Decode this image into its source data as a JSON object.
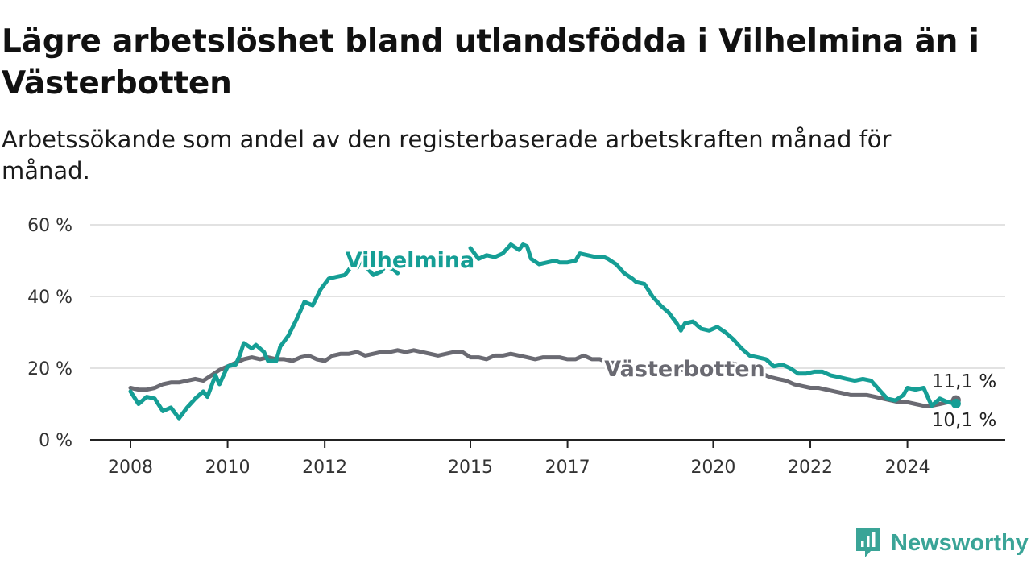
{
  "header": {
    "title": "Lägre arbetslöshet bland utlandsfödda i Vilhelmina än i Västerbotten",
    "subtitle": "Arbetssökande som andel av den registerbaserade arbetskraften månad för månad."
  },
  "brand": {
    "name": "Newsworthy",
    "icon": "newsworthy-logo-icon",
    "color": "#3aa497"
  },
  "chart_data": {
    "type": "line",
    "xlim": [
      "2008-01",
      "2025-06"
    ],
    "ylim": [
      0,
      60
    ],
    "yticks": [
      {
        "value": 0,
        "label": "0 %"
      },
      {
        "value": 20,
        "label": "20 %"
      },
      {
        "value": 40,
        "label": "40 %"
      },
      {
        "value": 60,
        "label": "60 %"
      }
    ],
    "xticks": [
      {
        "value": "2008-01",
        "label": "2008"
      },
      {
        "value": "2010-01",
        "label": "2010"
      },
      {
        "value": "2012-01",
        "label": "2012"
      },
      {
        "value": "2015-01",
        "label": "2015"
      },
      {
        "value": "2017-01",
        "label": "2017"
      },
      {
        "value": "2020-01",
        "label": "2020"
      },
      {
        "value": "2022-01",
        "label": "2022"
      },
      {
        "value": "2024-01",
        "label": "2024"
      }
    ],
    "grid": true,
    "series": [
      {
        "name": "Vilhelmina",
        "color": "#159e95",
        "end_label": "10,1 %",
        "points": [
          [
            "2008-01",
            13.5
          ],
          [
            "2008-03",
            10.0
          ],
          [
            "2008-05",
            12.0
          ],
          [
            "2008-07",
            11.5
          ],
          [
            "2008-09",
            8.0
          ],
          [
            "2008-11",
            9.0
          ],
          [
            "2009-01",
            6.0
          ],
          [
            "2009-03",
            9.0
          ],
          [
            "2009-05",
            11.5
          ],
          [
            "2009-07",
            13.5
          ],
          [
            "2009-08",
            12.0
          ],
          [
            "2009-10",
            18.0
          ],
          [
            "2009-11",
            15.5
          ],
          [
            "2010-01",
            20.5
          ],
          [
            "2010-03",
            21.0
          ],
          [
            "2010-04",
            23.5
          ],
          [
            "2010-05",
            27.0
          ],
          [
            "2010-07",
            25.5
          ],
          [
            "2010-08",
            26.5
          ],
          [
            "2010-10",
            24.5
          ],
          [
            "2010-11",
            22.0
          ],
          [
            "2011-01",
            22.0
          ],
          [
            "2011-02",
            26.0
          ],
          [
            "2011-04",
            29.0
          ],
          [
            "2011-06",
            33.5
          ],
          [
            "2011-08",
            38.5
          ],
          [
            "2011-09",
            38.0
          ],
          [
            "2011-10",
            37.5
          ],
          [
            "2011-12",
            42.0
          ],
          [
            "2012-02",
            45.0
          ],
          [
            "2012-04",
            45.5
          ],
          [
            "2012-06",
            46.0
          ],
          [
            "2012-08",
            49.0
          ],
          [
            "2012-09",
            48.0
          ],
          [
            "2012-10",
            50.5
          ],
          [
            "2012-11",
            48.5
          ],
          [
            "2013-01",
            46.0
          ],
          [
            "2013-03",
            47.0
          ],
          [
            "2013-04",
            48.5
          ],
          [
            "2013-06",
            47.5
          ],
          [
            "2013-07",
            46.5
          ],
          [
            "2015-01",
            53.5
          ],
          [
            "2015-03",
            50.5
          ],
          [
            "2015-05",
            51.5
          ],
          [
            "2015-07",
            51.0
          ],
          [
            "2015-09",
            52.0
          ],
          [
            "2015-11",
            54.5
          ],
          [
            "2016-01",
            53.0
          ],
          [
            "2016-02",
            54.5
          ],
          [
            "2016-03",
            54.0
          ],
          [
            "2016-04",
            50.5
          ],
          [
            "2016-06",
            49.0
          ],
          [
            "2016-08",
            49.5
          ],
          [
            "2016-10",
            50.0
          ],
          [
            "2016-11",
            49.5
          ],
          [
            "2017-01",
            49.5
          ],
          [
            "2017-03",
            50.0
          ],
          [
            "2017-04",
            52.0
          ],
          [
            "2017-06",
            51.5
          ],
          [
            "2017-08",
            51.0
          ],
          [
            "2017-10",
            51.0
          ],
          [
            "2017-11",
            50.5
          ],
          [
            "2018-01",
            49.0
          ],
          [
            "2018-03",
            46.5
          ],
          [
            "2018-05",
            45.0
          ],
          [
            "2018-06",
            44.0
          ],
          [
            "2018-08",
            43.5
          ],
          [
            "2018-10",
            40.0
          ],
          [
            "2018-12",
            37.5
          ],
          [
            "2019-02",
            35.5
          ],
          [
            "2019-04",
            32.5
          ],
          [
            "2019-05",
            30.5
          ],
          [
            "2019-06",
            32.5
          ],
          [
            "2019-08",
            33.0
          ],
          [
            "2019-10",
            31.0
          ],
          [
            "2019-12",
            30.5
          ],
          [
            "2020-02",
            31.5
          ],
          [
            "2020-04",
            30.0
          ],
          [
            "2020-06",
            28.0
          ],
          [
            "2020-08",
            25.5
          ],
          [
            "2020-10",
            23.5
          ],
          [
            "2020-12",
            23.0
          ],
          [
            "2021-02",
            22.5
          ],
          [
            "2021-04",
            20.5
          ],
          [
            "2021-06",
            21.0
          ],
          [
            "2021-08",
            20.0
          ],
          [
            "2021-10",
            18.5
          ],
          [
            "2021-12",
            18.5
          ],
          [
            "2022-02",
            19.0
          ],
          [
            "2022-04",
            19.0
          ],
          [
            "2022-06",
            18.0
          ],
          [
            "2022-08",
            17.5
          ],
          [
            "2022-10",
            17.0
          ],
          [
            "2022-12",
            16.5
          ],
          [
            "2023-02",
            17.0
          ],
          [
            "2023-04",
            16.5
          ],
          [
            "2023-06",
            14.0
          ],
          [
            "2023-08",
            11.5
          ],
          [
            "2023-10",
            11.0
          ],
          [
            "2023-12",
            12.5
          ],
          [
            "2024-01",
            14.5
          ],
          [
            "2024-03",
            14.0
          ],
          [
            "2024-05",
            14.5
          ],
          [
            "2024-07",
            9.5
          ],
          [
            "2024-09",
            11.5
          ],
          [
            "2024-11",
            10.5
          ],
          [
            "2025-01",
            10.1
          ]
        ],
        "gap_after": [
          "2013-07"
        ]
      },
      {
        "name": "Västerbotten",
        "color": "#6a6a72",
        "end_label": "11,1 %",
        "points": [
          [
            "2008-01",
            14.5
          ],
          [
            "2008-03",
            14.0
          ],
          [
            "2008-05",
            14.0
          ],
          [
            "2008-07",
            14.5
          ],
          [
            "2008-09",
            15.5
          ],
          [
            "2008-11",
            16.0
          ],
          [
            "2009-01",
            16.0
          ],
          [
            "2009-03",
            16.5
          ],
          [
            "2009-05",
            17.0
          ],
          [
            "2009-07",
            16.5
          ],
          [
            "2009-09",
            18.0
          ],
          [
            "2009-11",
            19.5
          ],
          [
            "2010-01",
            20.5
          ],
          [
            "2010-03",
            21.5
          ],
          [
            "2010-05",
            22.5
          ],
          [
            "2010-07",
            23.0
          ],
          [
            "2010-09",
            22.5
          ],
          [
            "2010-11",
            23.0
          ],
          [
            "2011-01",
            22.5
          ],
          [
            "2011-03",
            22.5
          ],
          [
            "2011-05",
            22.0
          ],
          [
            "2011-07",
            23.0
          ],
          [
            "2011-09",
            23.5
          ],
          [
            "2011-11",
            22.5
          ],
          [
            "2012-01",
            22.0
          ],
          [
            "2012-03",
            23.5
          ],
          [
            "2012-05",
            24.0
          ],
          [
            "2012-07",
            24.0
          ],
          [
            "2012-09",
            24.5
          ],
          [
            "2012-11",
            23.5
          ],
          [
            "2013-01",
            24.0
          ],
          [
            "2013-03",
            24.5
          ],
          [
            "2013-05",
            24.5
          ],
          [
            "2013-07",
            25.0
          ],
          [
            "2013-09",
            24.5
          ],
          [
            "2013-11",
            25.0
          ],
          [
            "2014-01",
            24.5
          ],
          [
            "2014-03",
            24.0
          ],
          [
            "2014-05",
            23.5
          ],
          [
            "2014-07",
            24.0
          ],
          [
            "2014-09",
            24.5
          ],
          [
            "2014-11",
            24.5
          ],
          [
            "2015-01",
            23.0
          ],
          [
            "2015-03",
            23.0
          ],
          [
            "2015-05",
            22.5
          ],
          [
            "2015-07",
            23.5
          ],
          [
            "2015-09",
            23.5
          ],
          [
            "2015-11",
            24.0
          ],
          [
            "2016-01",
            23.5
          ],
          [
            "2016-03",
            23.0
          ],
          [
            "2016-05",
            22.5
          ],
          [
            "2016-07",
            23.0
          ],
          [
            "2016-09",
            23.0
          ],
          [
            "2016-11",
            23.0
          ],
          [
            "2017-01",
            22.5
          ],
          [
            "2017-03",
            22.5
          ],
          [
            "2017-05",
            23.5
          ],
          [
            "2017-07",
            22.5
          ],
          [
            "2017-09",
            22.5
          ],
          [
            "2017-11",
            21.5
          ],
          [
            "2018-01",
            21.5
          ],
          [
            "2018-03",
            21.0
          ],
          [
            "2018-05",
            20.5
          ],
          [
            "2018-07",
            20.0
          ],
          [
            "2018-09",
            19.5
          ],
          [
            "2018-11",
            19.5
          ],
          [
            "2019-01",
            19.0
          ],
          [
            "2019-03",
            19.0
          ],
          [
            "2019-05",
            19.5
          ],
          [
            "2019-07",
            19.5
          ],
          [
            "2019-09",
            19.0
          ],
          [
            "2019-11",
            19.0
          ],
          [
            "2020-01",
            19.5
          ],
          [
            "2020-03",
            20.0
          ],
          [
            "2020-05",
            21.5
          ],
          [
            "2020-07",
            21.0
          ],
          [
            "2020-09",
            20.0
          ],
          [
            "2020-11",
            19.0
          ],
          [
            "2021-01",
            18.5
          ],
          [
            "2021-03",
            17.5
          ],
          [
            "2021-05",
            17.0
          ],
          [
            "2021-07",
            16.5
          ],
          [
            "2021-09",
            15.5
          ],
          [
            "2021-11",
            15.0
          ],
          [
            "2022-01",
            14.5
          ],
          [
            "2022-03",
            14.5
          ],
          [
            "2022-05",
            14.0
          ],
          [
            "2022-07",
            13.5
          ],
          [
            "2022-09",
            13.0
          ],
          [
            "2022-11",
            12.5
          ],
          [
            "2023-01",
            12.5
          ],
          [
            "2023-03",
            12.5
          ],
          [
            "2023-05",
            12.0
          ],
          [
            "2023-07",
            11.5
          ],
          [
            "2023-09",
            11.0
          ],
          [
            "2023-11",
            10.5
          ],
          [
            "2024-01",
            10.5
          ],
          [
            "2024-03",
            10.0
          ],
          [
            "2024-05",
            9.5
          ],
          [
            "2024-07",
            9.5
          ],
          [
            "2024-09",
            10.0
          ],
          [
            "2024-11",
            10.5
          ],
          [
            "2025-01",
            11.1
          ]
        ]
      }
    ]
  }
}
